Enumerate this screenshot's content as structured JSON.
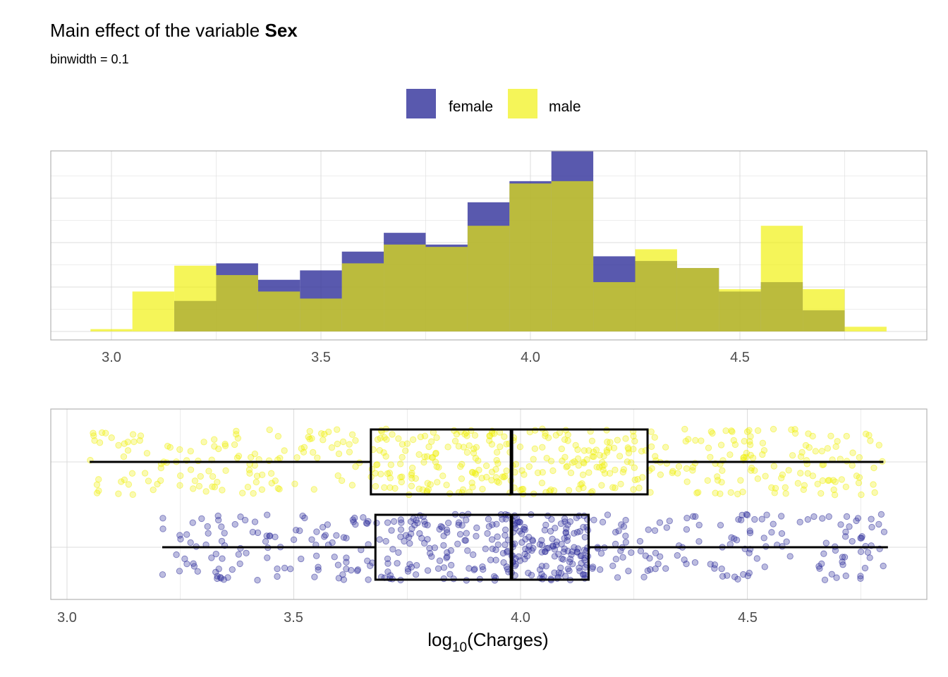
{
  "title_prefix": "Main effect of the variable ",
  "title_bold": "Sex",
  "subtitle": "binwidth  = 0.1",
  "colors": {
    "female": "#2f2f9a",
    "male": "#f0f000",
    "grid": "#dcdcdc",
    "panel_border": "#b3b3b3"
  },
  "legend": [
    {
      "label": "female",
      "color": "#2f2f9a"
    },
    {
      "label": "male",
      "color": "#f0f000"
    }
  ],
  "chart_data": [
    {
      "type": "histogram",
      "binwidth": 0.1,
      "bin_centers": [
        3.0,
        3.1,
        3.2,
        3.3,
        3.4,
        3.5,
        3.6,
        3.7,
        3.8,
        3.9,
        4.0,
        4.1,
        4.2,
        4.3,
        4.4,
        4.5,
        4.6,
        4.7,
        4.8
      ],
      "series": [
        {
          "name": "female",
          "values": [
            0,
            0,
            13,
            29,
            22,
            26,
            34,
            42,
            37,
            55,
            64,
            77,
            32,
            30,
            27,
            17,
            21,
            9,
            0
          ]
        },
        {
          "name": "male",
          "values": [
            1,
            17,
            28,
            24,
            17,
            14,
            29,
            37,
            36,
            45,
            63,
            64,
            21,
            35,
            27,
            18,
            45,
            18,
            2
          ]
        }
      ],
      "xlim": [
        2.9,
        4.9
      ],
      "x_ticks": [
        "3.0",
        "3.5",
        "4.0",
        "4.5"
      ],
      "grid": true
    },
    {
      "type": "boxplot",
      "groups": [
        {
          "name": "male",
          "whisker_low": 3.05,
          "q1": 3.67,
          "median": 3.98,
          "q3": 4.28,
          "whisker_high": 4.8
        },
        {
          "name": "female",
          "whisker_low": 3.21,
          "q1": 3.68,
          "median": 3.98,
          "q3": 4.15,
          "whisker_high": 4.81
        }
      ],
      "jitter_points": true,
      "xlim": [
        3.0,
        4.9
      ],
      "x_ticks": [
        "3.0",
        "3.5",
        "4.0",
        "4.5"
      ],
      "xlabel_base": "log",
      "xlabel_sub": "10",
      "xlabel_rest": "(Charges)",
      "grid": true
    }
  ]
}
